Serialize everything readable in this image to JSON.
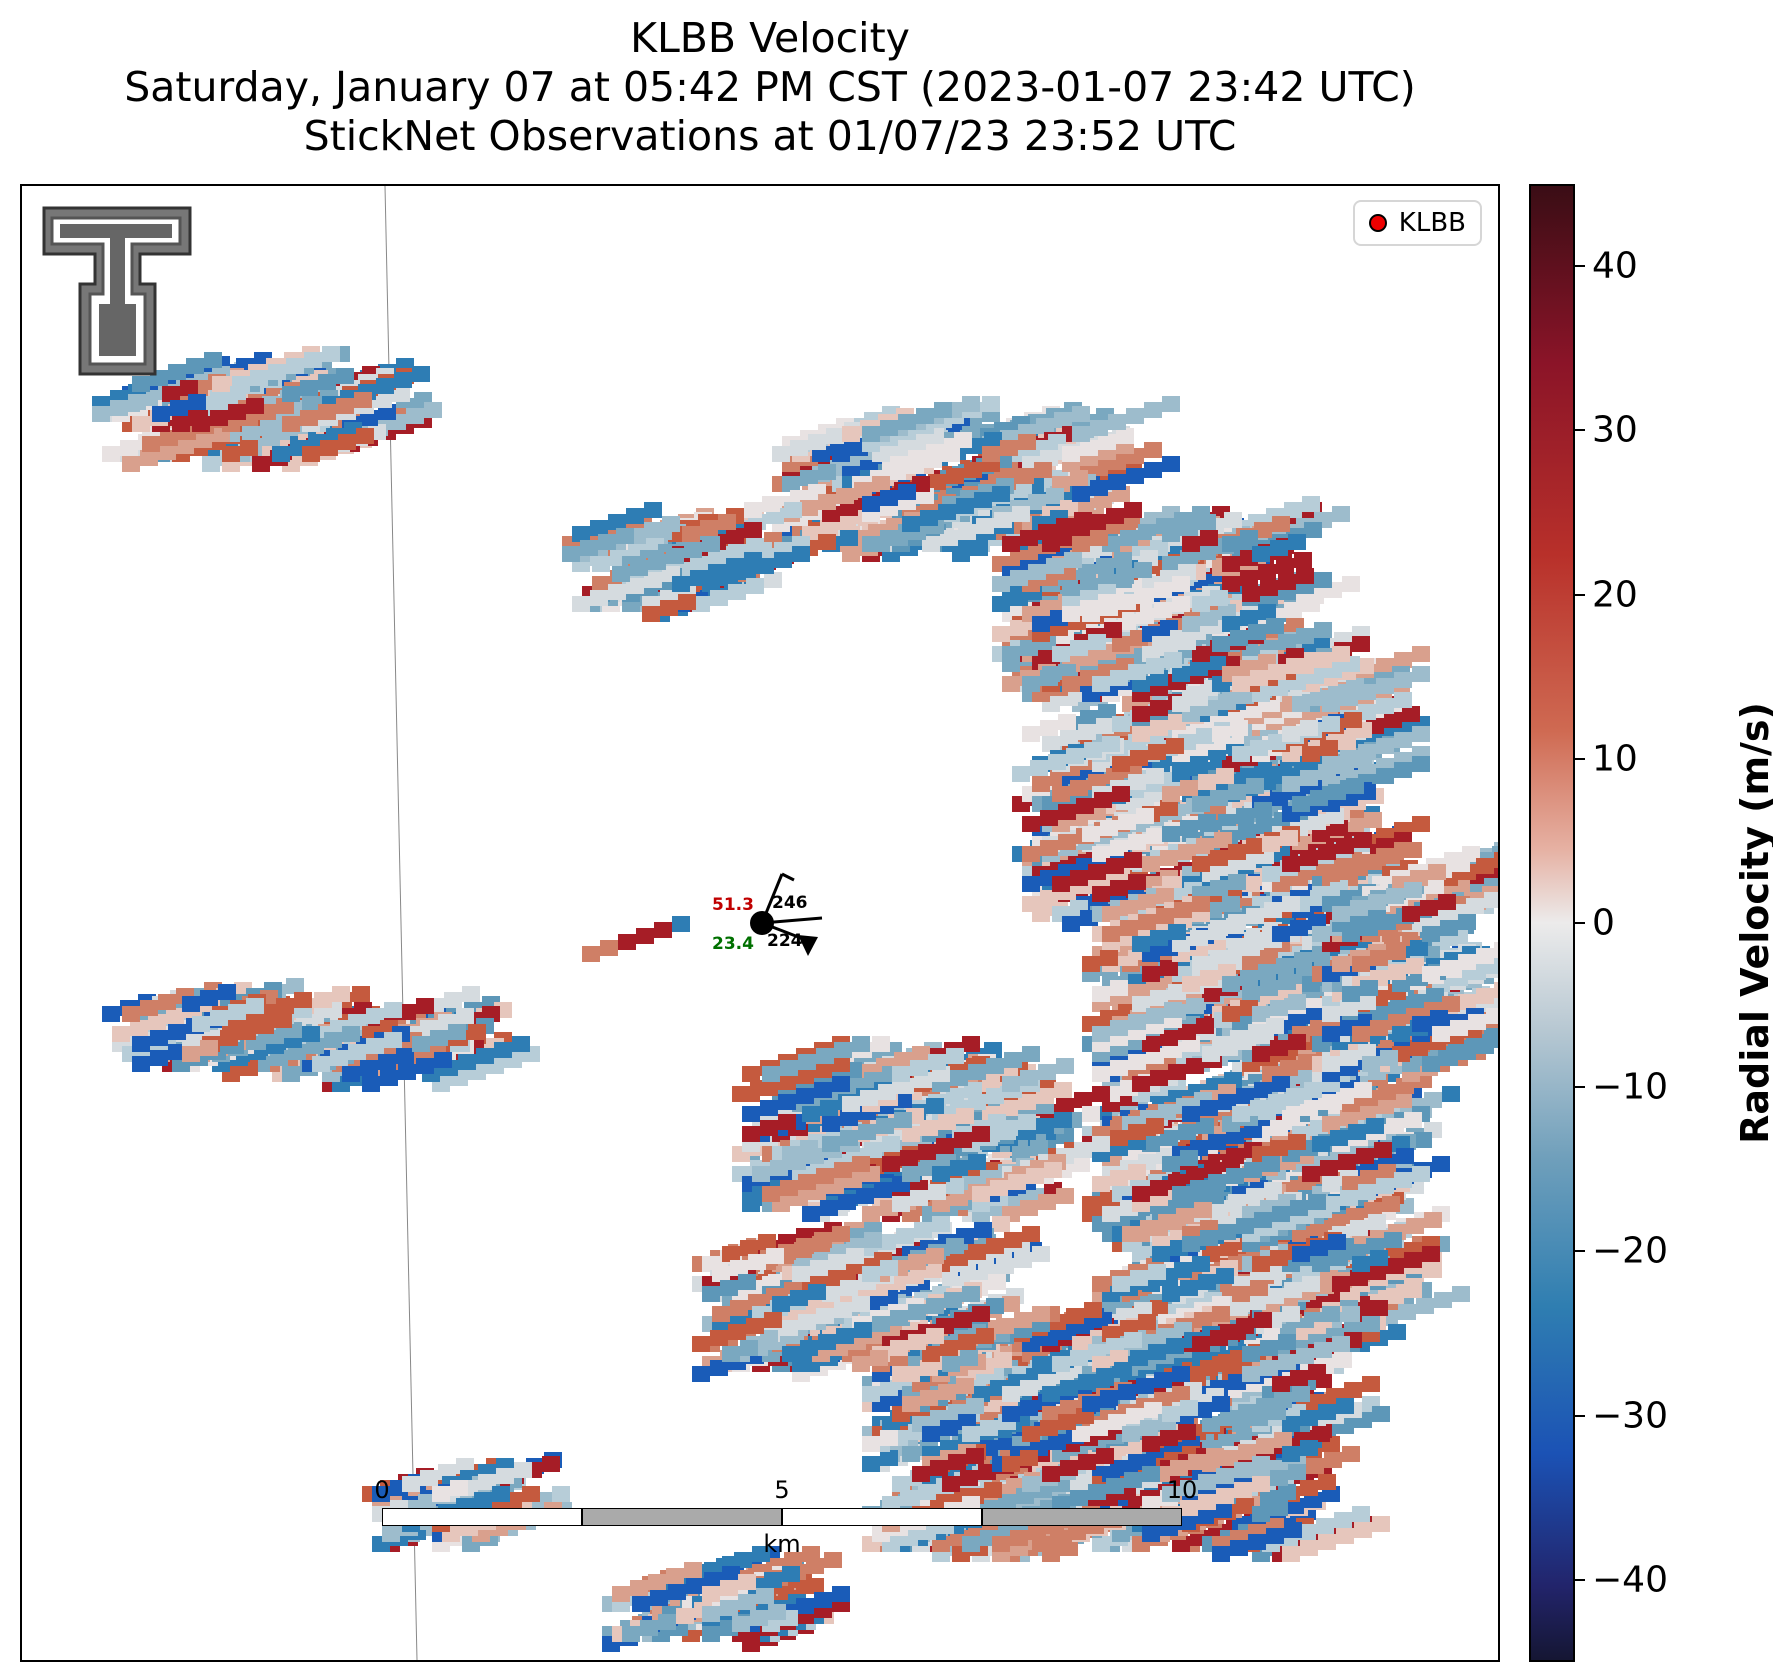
{
  "title": {
    "line1": "KLBB Velocity",
    "line2": "Saturday, January 07 at 05:42 PM CST (2023-01-07 23:42 UTC)",
    "line3": "StickNet Observations at 01/07/23 23:52 UTC"
  },
  "legend": {
    "label": "KLBB",
    "marker_color": "#e00000"
  },
  "station": {
    "temp": "51.3",
    "dewpoint": "23.4",
    "upper_value": "246",
    "lower_value": "224",
    "temp_color": "#c00000",
    "dewpoint_color": "#007000"
  },
  "scalebar": {
    "labels": [
      "0",
      "5",
      "10"
    ],
    "unit": "km"
  },
  "colorbar": {
    "title": "Radial Velocity (m/s)",
    "ticks": [
      "40",
      "30",
      "20",
      "10",
      "0",
      "−10",
      "−20",
      "−30",
      "−40"
    ],
    "range": [
      -45,
      45
    ]
  },
  "icons": {
    "logo": "texas-tech-double-t-logo"
  }
}
